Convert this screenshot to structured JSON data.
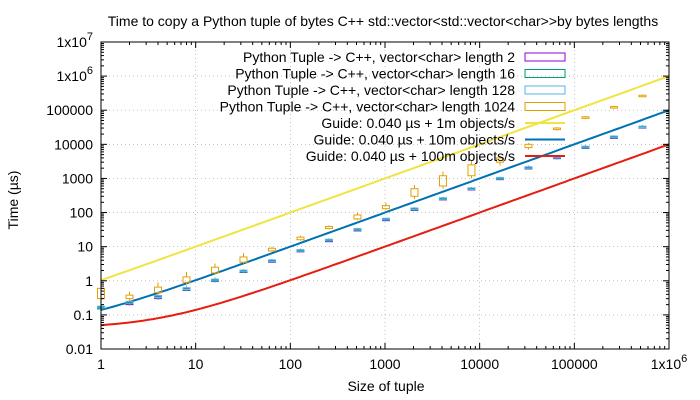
{
  "chart_data": {
    "type": "line",
    "title": "Time to copy a Python tuple of bytes C++ std::vector<std::vector<char>>by bytes lengths",
    "xlabel": "Size of tuple",
    "ylabel": "Time (µs)",
    "xscale": "log",
    "yscale": "log",
    "xlim": [
      1,
      1000000
    ],
    "ylim": [
      0.01,
      10000000
    ],
    "grid": true,
    "legend_position": "top-right",
    "x_ticks": [
      {
        "value": 1,
        "label": "1",
        "sup": ""
      },
      {
        "value": 10,
        "label": "10",
        "sup": ""
      },
      {
        "value": 100,
        "label": "100",
        "sup": ""
      },
      {
        "value": 1000,
        "label": "1000",
        "sup": ""
      },
      {
        "value": 10000,
        "label": "10000",
        "sup": ""
      },
      {
        "value": 100000,
        "label": "100000",
        "sup": ""
      },
      {
        "value": 1000000,
        "label": "1x10",
        "sup": "6"
      }
    ],
    "y_ticks": [
      {
        "value": 0.01,
        "label": "0.01",
        "sup": ""
      },
      {
        "value": 0.1,
        "label": "0.1",
        "sup": ""
      },
      {
        "value": 1,
        "label": "1",
        "sup": ""
      },
      {
        "value": 10,
        "label": "10",
        "sup": ""
      },
      {
        "value": 100,
        "label": "100",
        "sup": ""
      },
      {
        "value": 1000,
        "label": "1000",
        "sup": ""
      },
      {
        "value": 10000,
        "label": "10000",
        "sup": ""
      },
      {
        "value": 100000,
        "label": "100000",
        "sup": ""
      },
      {
        "value": 1000000,
        "label": "1x10",
        "sup": "6"
      },
      {
        "value": 10000000,
        "label": "1x10",
        "sup": "7"
      }
    ],
    "candle_series": [
      {
        "name": "Python Tuple -> C++, vector<char> length 2",
        "color": "#9400d3",
        "points": [
          {
            "x": 1,
            "low": 0.14,
            "q1": 0.15,
            "q3": 0.17,
            "high": 0.19
          },
          {
            "x": 2,
            "low": 0.19,
            "q1": 0.2,
            "q3": 0.23,
            "high": 0.26
          },
          {
            "x": 4,
            "low": 0.28,
            "q1": 0.3,
            "q3": 0.35,
            "high": 0.4
          },
          {
            "x": 8,
            "low": 0.5,
            "q1": 0.52,
            "q3": 0.6,
            "high": 0.68
          },
          {
            "x": 16,
            "low": 0.9,
            "q1": 0.95,
            "q3": 1.05,
            "high": 1.2
          },
          {
            "x": 32,
            "low": 1.7,
            "q1": 1.75,
            "q3": 1.95,
            "high": 2.1
          },
          {
            "x": 64,
            "low": 3.4,
            "q1": 3.5,
            "q3": 3.9,
            "high": 4.2
          },
          {
            "x": 128,
            "low": 7.0,
            "q1": 7.2,
            "q3": 7.8,
            "high": 8.4
          },
          {
            "x": 256,
            "low": 14,
            "q1": 14.5,
            "q3": 15.5,
            "high": 16.5
          },
          {
            "x": 512,
            "low": 29,
            "q1": 30,
            "q3": 32,
            "high": 34
          },
          {
            "x": 1024,
            "low": 58,
            "q1": 60,
            "q3": 64,
            "high": 68
          },
          {
            "x": 2048,
            "low": 118,
            "q1": 121,
            "q3": 128,
            "high": 136
          },
          {
            "x": 4096,
            "low": 240,
            "q1": 245,
            "q3": 260,
            "high": 275
          },
          {
            "x": 8192,
            "low": 470,
            "q1": 480,
            "q3": 510,
            "high": 540
          },
          {
            "x": 16384,
            "low": 950,
            "q1": 970,
            "q3": 1020,
            "high": 1080
          },
          {
            "x": 32768,
            "low": 1850,
            "q1": 1900,
            "q3": 2100,
            "high": 2300
          },
          {
            "x": 65536,
            "low": 3600,
            "q1": 3800,
            "q3": 4300,
            "high": 4700
          },
          {
            "x": 131072,
            "low": 7400,
            "q1": 7600,
            "q3": 8400,
            "high": 9000
          },
          {
            "x": 262144,
            "low": 14500,
            "q1": 15000,
            "q3": 16500,
            "high": 17500
          },
          {
            "x": 524288,
            "low": 29000,
            "q1": 30000,
            "q3": 33000,
            "high": 35000
          }
        ]
      },
      {
        "name": "Python Tuple -> C++, vector<char> length 16",
        "color": "#009e73",
        "points": [
          {
            "x": 1,
            "low": 0.14,
            "q1": 0.15,
            "q3": 0.17,
            "high": 0.19
          },
          {
            "x": 2,
            "low": 0.2,
            "q1": 0.21,
            "q3": 0.24,
            "high": 0.27
          },
          {
            "x": 4,
            "low": 0.29,
            "q1": 0.31,
            "q3": 0.36,
            "high": 0.41
          },
          {
            "x": 8,
            "low": 0.5,
            "q1": 0.53,
            "q3": 0.61,
            "high": 0.7
          },
          {
            "x": 16,
            "low": 0.92,
            "q1": 0.96,
            "q3": 1.08,
            "high": 1.22
          },
          {
            "x": 32,
            "low": 1.7,
            "q1": 1.78,
            "q3": 1.98,
            "high": 2.15
          },
          {
            "x": 64,
            "low": 3.5,
            "q1": 3.6,
            "q3": 4.0,
            "high": 4.3
          },
          {
            "x": 128,
            "low": 7.1,
            "q1": 7.3,
            "q3": 8.0,
            "high": 8.6
          },
          {
            "x": 256,
            "low": 14.2,
            "q1": 14.8,
            "q3": 16,
            "high": 17
          },
          {
            "x": 512,
            "low": 29,
            "q1": 30.5,
            "q3": 33,
            "high": 35
          },
          {
            "x": 1024,
            "low": 59,
            "q1": 61,
            "q3": 66,
            "high": 70
          },
          {
            "x": 2048,
            "low": 120,
            "q1": 123,
            "q3": 132,
            "high": 140
          },
          {
            "x": 4096,
            "low": 242,
            "q1": 248,
            "q3": 265,
            "high": 280
          },
          {
            "x": 8192,
            "low": 475,
            "q1": 485,
            "q3": 520,
            "high": 550
          },
          {
            "x": 16384,
            "low": 960,
            "q1": 980,
            "q3": 1040,
            "high": 1100
          },
          {
            "x": 32768,
            "low": 1900,
            "q1": 1950,
            "q3": 2150,
            "high": 2350
          },
          {
            "x": 65536,
            "low": 3700,
            "q1": 3900,
            "q3": 4400,
            "high": 4800
          },
          {
            "x": 131072,
            "low": 7500,
            "q1": 7700,
            "q3": 8600,
            "high": 9200
          },
          {
            "x": 262144,
            "low": 14800,
            "q1": 15300,
            "q3": 17000,
            "high": 18000
          },
          {
            "x": 524288,
            "low": 29500,
            "q1": 30500,
            "q3": 33500,
            "high": 36000
          }
        ]
      },
      {
        "name": "Python Tuple -> C++, vector<char> length 128",
        "color": "#56b4e9",
        "points": [
          {
            "x": 1,
            "low": 0.15,
            "q1": 0.16,
            "q3": 0.18,
            "high": 0.21
          },
          {
            "x": 2,
            "low": 0.2,
            "q1": 0.22,
            "q3": 0.25,
            "high": 0.28
          },
          {
            "x": 4,
            "low": 0.3,
            "q1": 0.32,
            "q3": 0.37,
            "high": 0.42
          },
          {
            "x": 8,
            "low": 0.52,
            "q1": 0.55,
            "q3": 0.63,
            "high": 0.72
          },
          {
            "x": 16,
            "low": 0.95,
            "q1": 1.0,
            "q3": 1.12,
            "high": 1.26
          },
          {
            "x": 32,
            "low": 1.75,
            "q1": 1.85,
            "q3": 2.05,
            "high": 2.2
          },
          {
            "x": 64,
            "low": 3.6,
            "q1": 3.7,
            "q3": 4.1,
            "high": 4.4
          },
          {
            "x": 128,
            "low": 7.2,
            "q1": 7.5,
            "q3": 8.2,
            "high": 8.8
          },
          {
            "x": 256,
            "low": 14.5,
            "q1": 15,
            "q3": 16.5,
            "high": 17.5
          },
          {
            "x": 512,
            "low": 30,
            "q1": 31,
            "q3": 34,
            "high": 36
          },
          {
            "x": 1024,
            "low": 60,
            "q1": 62,
            "q3": 68,
            "high": 72
          },
          {
            "x": 2048,
            "low": 122,
            "q1": 126,
            "q3": 136,
            "high": 145
          },
          {
            "x": 4096,
            "low": 245,
            "q1": 252,
            "q3": 272,
            "high": 290
          },
          {
            "x": 8192,
            "low": 480,
            "q1": 495,
            "q3": 530,
            "high": 565
          },
          {
            "x": 16384,
            "low": 970,
            "q1": 1000,
            "q3": 1070,
            "high": 1130
          },
          {
            "x": 32768,
            "low": 1950,
            "q1": 2000,
            "q3": 2200,
            "high": 2400
          },
          {
            "x": 65536,
            "low": 3800,
            "q1": 4000,
            "q3": 4500,
            "high": 4900
          },
          {
            "x": 131072,
            "low": 7700,
            "q1": 7900,
            "q3": 8800,
            "high": 9500
          },
          {
            "x": 262144,
            "low": 15000,
            "q1": 15700,
            "q3": 17500,
            "high": 18500
          },
          {
            "x": 524288,
            "low": 30000,
            "q1": 31000,
            "q3": 34000,
            "high": 37000
          }
        ]
      },
      {
        "name": "Python Tuple -> C++, vector<char> length 1024",
        "color": "#e69f00",
        "points": [
          {
            "x": 1,
            "low": 0.15,
            "q1": 0.3,
            "q3": 0.6,
            "high": 1.1
          },
          {
            "x": 2,
            "low": 0.25,
            "q1": 0.3,
            "q3": 0.38,
            "high": 0.48
          },
          {
            "x": 4,
            "low": 0.4,
            "q1": 0.45,
            "q3": 0.65,
            "high": 0.9
          },
          {
            "x": 8,
            "low": 0.8,
            "q1": 0.9,
            "q3": 1.3,
            "high": 1.8
          },
          {
            "x": 16,
            "low": 1.5,
            "q1": 1.7,
            "q3": 2.5,
            "high": 3.2
          },
          {
            "x": 32,
            "low": 3.2,
            "q1": 3.5,
            "q3": 5.0,
            "high": 6.5
          },
          {
            "x": 64,
            "low": 7,
            "q1": 7.5,
            "q3": 9,
            "high": 10
          },
          {
            "x": 128,
            "low": 15,
            "q1": 16,
            "q3": 19,
            "high": 21
          },
          {
            "x": 256,
            "low": 32,
            "q1": 34,
            "q3": 39,
            "high": 42
          },
          {
            "x": 512,
            "low": 60,
            "q1": 65,
            "q3": 85,
            "high": 100
          },
          {
            "x": 1024,
            "low": 120,
            "q1": 130,
            "q3": 160,
            "high": 190
          },
          {
            "x": 2048,
            "low": 250,
            "q1": 300,
            "q3": 500,
            "high": 650
          },
          {
            "x": 4096,
            "low": 500,
            "q1": 600,
            "q3": 1200,
            "high": 1600
          },
          {
            "x": 8192,
            "low": 1000,
            "q1": 1200,
            "q3": 2500,
            "high": 3200
          },
          {
            "x": 16384,
            "low": 2400,
            "q1": 3000,
            "q3": 4000,
            "high": 4500
          },
          {
            "x": 32768,
            "low": 7000,
            "q1": 8000,
            "q3": 10000,
            "high": 11000
          },
          {
            "x": 65536,
            "low": 25000,
            "q1": 27000,
            "q3": 30000,
            "high": 32000
          },
          {
            "x": 131072,
            "low": 55000,
            "q1": 58000,
            "q3": 64000,
            "high": 68000
          },
          {
            "x": 262144,
            "low": 110000,
            "q1": 118000,
            "q3": 128000,
            "high": 135000
          },
          {
            "x": 524288,
            "low": 240000,
            "q1": 250000,
            "q3": 275000,
            "high": 290000
          }
        ]
      }
    ],
    "guide_series": [
      {
        "name": "Guide: 0.040 µs + 1m objects/s",
        "color": "#f0e442",
        "overhead_us": 0.04,
        "objects_per_s": 1000000
      },
      {
        "name": "Guide: 0.040 µs + 10m objects/s",
        "color": "#0072b2",
        "overhead_us": 0.04,
        "objects_per_s": 10000000
      },
      {
        "name": "Guide: 0.040 µs + 100m objects/s",
        "color": "#e51e10",
        "overhead_us": 0.04,
        "objects_per_s": 100000000
      }
    ]
  }
}
